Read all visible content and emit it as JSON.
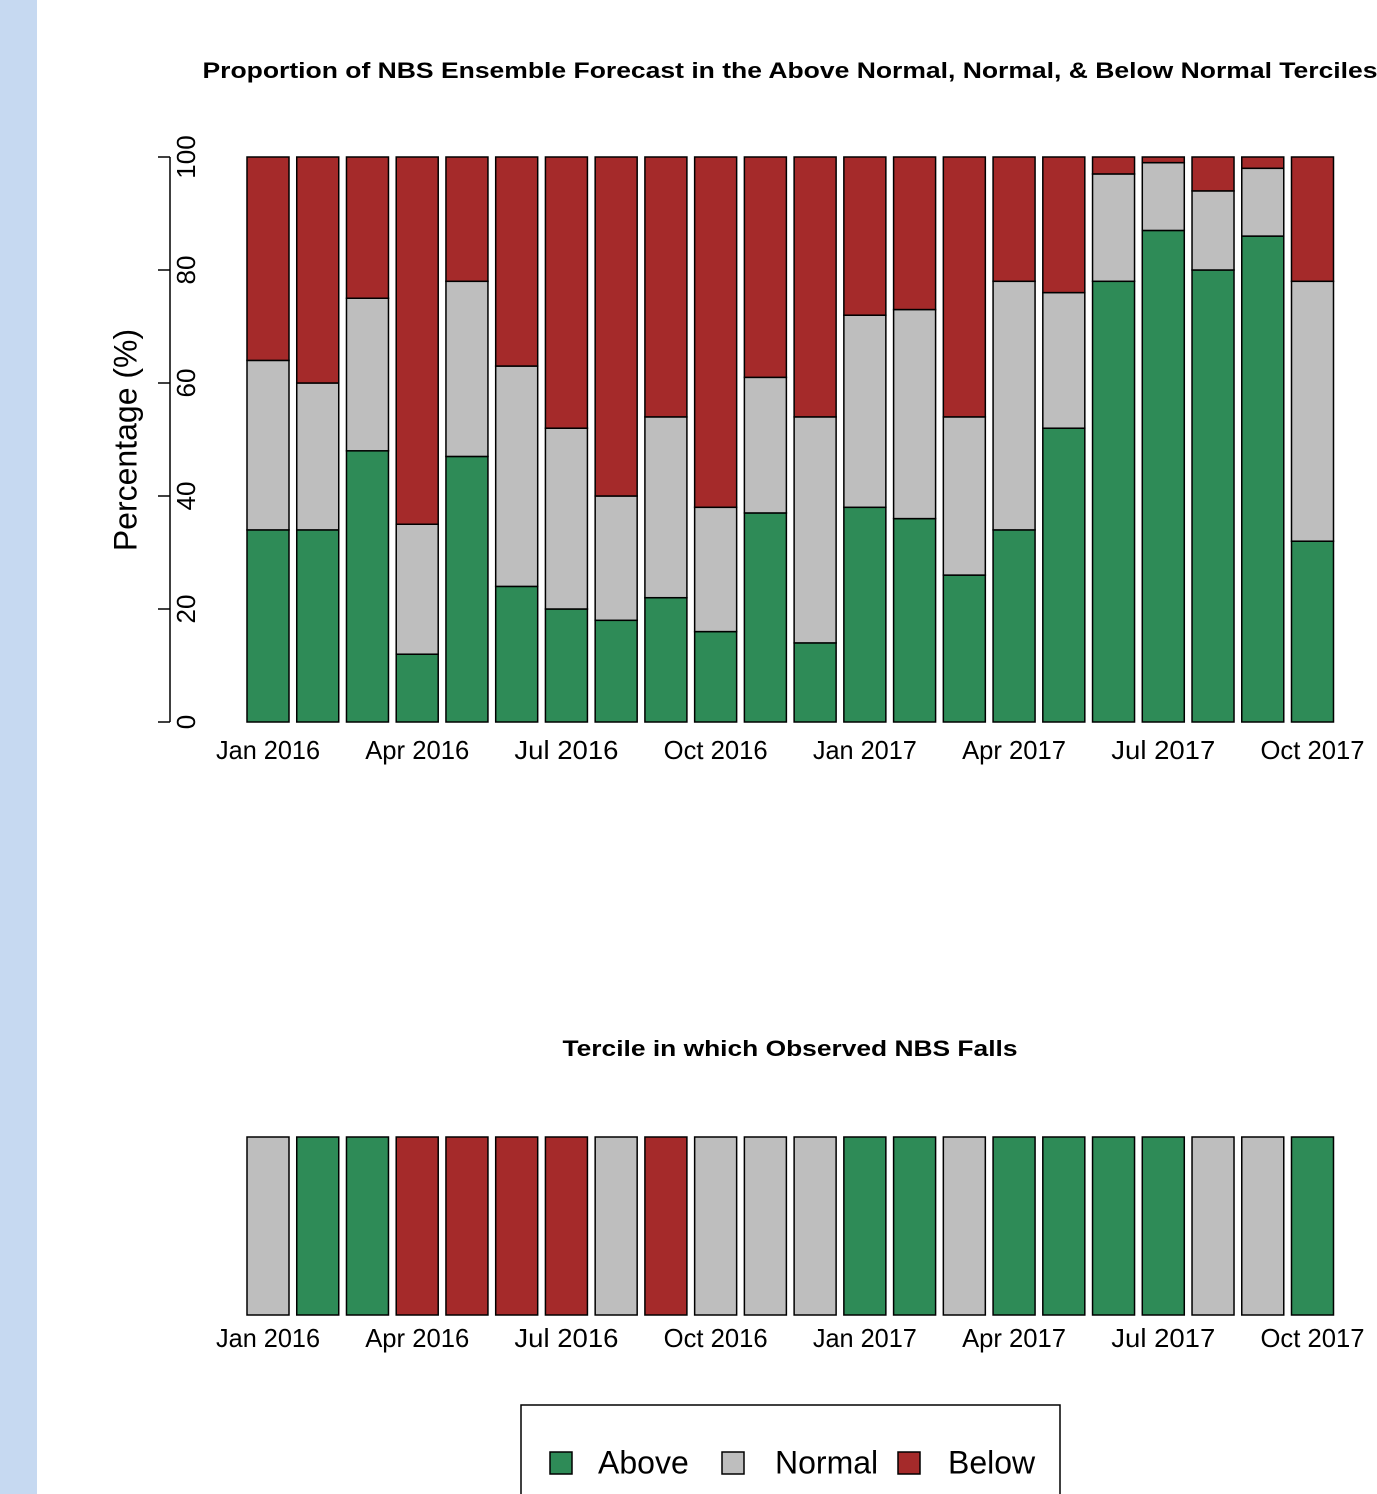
{
  "chart_data": [
    {
      "type": "stacked_bar",
      "title": "Proportion of NBS Ensemble Forecast in the Above Normal, Normal, & Below Normal Terciles",
      "y_label": "Percentage (%)",
      "categories": [
        "Jan 2016",
        null,
        null,
        "Apr 2016",
        null,
        null,
        "Jul 2016",
        null,
        null,
        "Oct 2016",
        null,
        null,
        "Jan 2017",
        null,
        null,
        "Apr 2017",
        null,
        null,
        "Jul 2017",
        null,
        null,
        "Oct 2017"
      ],
      "series": [
        {
          "name": "Above",
          "color": "#2e8b57",
          "values": [
            34,
            34,
            48,
            12,
            47,
            24,
            20,
            18,
            22,
            16,
            37,
            14,
            38,
            36,
            26,
            34,
            52,
            78,
            87,
            80,
            86,
            32
          ]
        },
        {
          "name": "Normal",
          "color": "#bebebe",
          "values": [
            30,
            26,
            27,
            23,
            31,
            39,
            32,
            22,
            32,
            22,
            24,
            40,
            34,
            37,
            28,
            44,
            24,
            19,
            12,
            14,
            12,
            46
          ]
        },
        {
          "name": "Below",
          "color": "#a52a2a",
          "values": [
            36,
            40,
            25,
            65,
            22,
            37,
            48,
            60,
            46,
            62,
            39,
            46,
            28,
            27,
            46,
            22,
            24,
            3,
            1,
            6,
            2,
            22
          ]
        }
      ],
      "ylim": [
        0,
        100
      ],
      "yticks": [
        0,
        20,
        40,
        60,
        80,
        100
      ]
    },
    {
      "type": "stacked_bar",
      "title": "Tercile in which Observed NBS Falls",
      "categories": [
        "Jan 2016",
        null,
        null,
        "Apr 2016",
        null,
        null,
        "Jul 2016",
        null,
        null,
        "Oct 2016",
        null,
        null,
        "Jan 2017",
        null,
        null,
        "Apr 2017",
        null,
        null,
        "Jul 2017",
        null,
        null,
        "Oct 2017"
      ],
      "series": [
        {
          "name": "Above",
          "color": "#2e8b57",
          "values": [
            0,
            100,
            100,
            0,
            0,
            0,
            0,
            0,
            0,
            0,
            0,
            0,
            100,
            100,
            0,
            100,
            100,
            100,
            100,
            0,
            0,
            100
          ]
        },
        {
          "name": "Normal",
          "color": "#bebebe",
          "values": [
            100,
            0,
            0,
            0,
            0,
            0,
            0,
            100,
            0,
            100,
            100,
            100,
            0,
            0,
            100,
            0,
            0,
            0,
            0,
            100,
            100,
            0
          ]
        },
        {
          "name": "Below",
          "color": "#a52a2a",
          "values": [
            0,
            0,
            0,
            100,
            100,
            100,
            100,
            0,
            100,
            0,
            0,
            0,
            0,
            0,
            0,
            0,
            0,
            0,
            0,
            0,
            0,
            0
          ]
        }
      ],
      "ylim": [
        0,
        100
      ],
      "legend": "bottom"
    }
  ]
}
